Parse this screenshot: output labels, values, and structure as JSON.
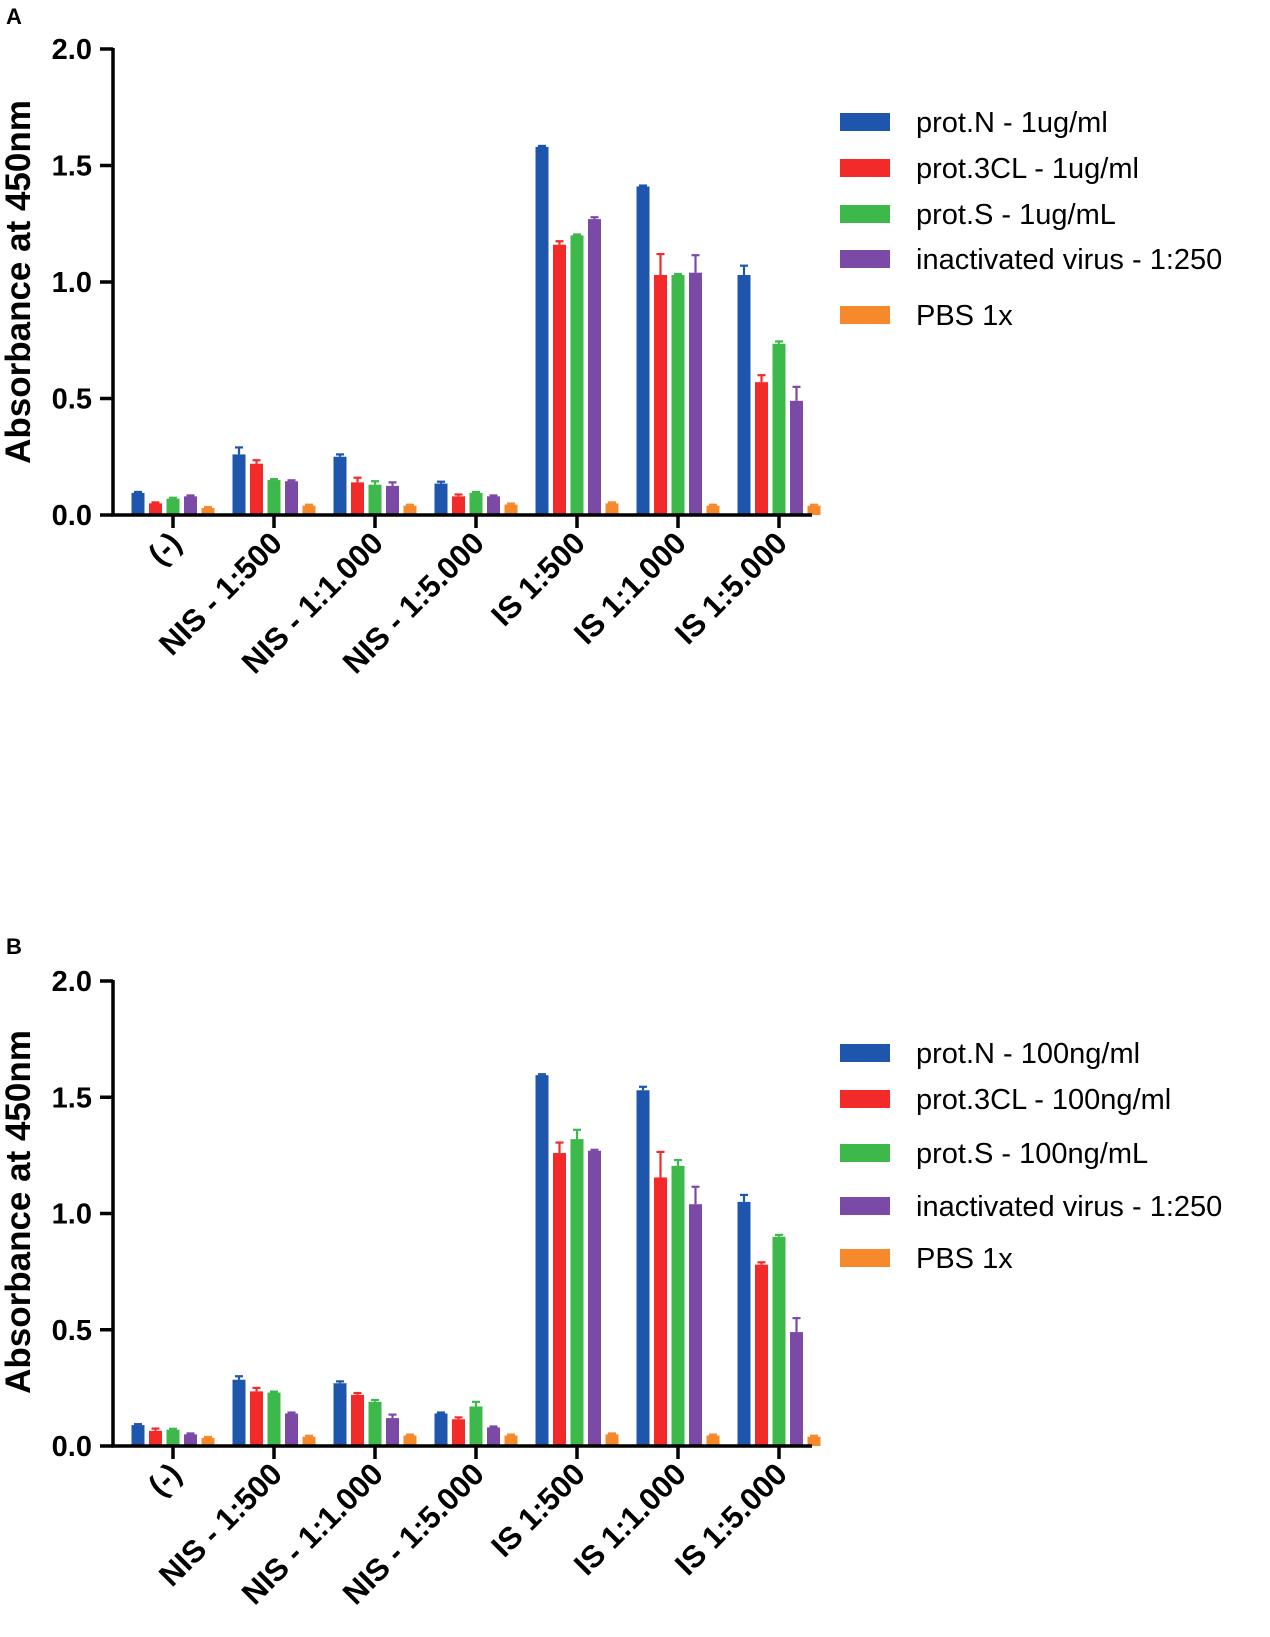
{
  "chart_data": [
    {
      "type": "bar",
      "panel": "A",
      "ylabel": "Absorbance at 450nm",
      "ylim": [
        0,
        2.0
      ],
      "yticks": [
        "0.0",
        "0.5",
        "1.0",
        "1.5",
        "2.0"
      ],
      "categories": [
        "(-)",
        "NIS - 1:500",
        "NIS - 1:1.000",
        "NIS - 1:5.000",
        "IS 1:500",
        "IS 1:1.000",
        "IS 1:5.000"
      ],
      "series": [
        {
          "name": "prot.N - 1ug/ml",
          "color": "#1f56ad",
          "values": [
            0.095,
            0.26,
            0.25,
            0.135,
            1.58,
            1.41,
            1.03
          ],
          "errors": [
            0.004,
            0.03,
            0.01,
            0.008,
            0.004,
            0.004,
            0.04
          ]
        },
        {
          "name": "prot.3CL - 1ug/ml",
          "color": "#f22a2a",
          "values": [
            0.05,
            0.22,
            0.14,
            0.08,
            1.16,
            1.03,
            0.57
          ],
          "errors": [
            0.004,
            0.015,
            0.02,
            0.008,
            0.015,
            0.09,
            0.03
          ]
        },
        {
          "name": "prot.S - 1ug/mL",
          "color": "#3cb94a",
          "values": [
            0.07,
            0.15,
            0.13,
            0.095,
            1.2,
            1.03,
            0.735
          ],
          "errors": [
            0.004,
            0.004,
            0.015,
            0.004,
            0.004,
            0.004,
            0.01
          ]
        },
        {
          "name": "inactivated virus - 1:250",
          "color": "#7b4aa6",
          "values": [
            0.08,
            0.145,
            0.125,
            0.08,
            1.27,
            1.04,
            0.49
          ],
          "errors": [
            0.004,
            0.004,
            0.015,
            0.004,
            0.008,
            0.075,
            0.06
          ]
        },
        {
          "name": "PBS 1x",
          "color": "#f5892b",
          "values": [
            0.03,
            0.04,
            0.04,
            0.045,
            0.05,
            0.04,
            0.04
          ],
          "errors": [
            0.004,
            0.004,
            0.004,
            0.004,
            0.004,
            0.004,
            0.004
          ]
        }
      ]
    },
    {
      "type": "bar",
      "panel": "B",
      "ylabel": "Absorbance at 450nm",
      "ylim": [
        0,
        2.0
      ],
      "yticks": [
        "0.0",
        "0.5",
        "1.0",
        "1.5",
        "2.0"
      ],
      "categories": [
        "(-)",
        "NIS - 1:500",
        "NIS - 1:1.000",
        "NIS - 1:5.000",
        "IS 1:500",
        "IS 1:1.000",
        "IS 1:5.000"
      ],
      "series": [
        {
          "name": "prot.N - 100ng/ml",
          "color": "#1f56ad",
          "values": [
            0.09,
            0.285,
            0.27,
            0.14,
            1.595,
            1.53,
            1.05
          ],
          "errors": [
            0.004,
            0.015,
            0.008,
            0.004,
            0.004,
            0.015,
            0.03
          ]
        },
        {
          "name": "prot.3CL - 100ng/ml",
          "color": "#f22a2a",
          "values": [
            0.065,
            0.235,
            0.22,
            0.115,
            1.26,
            1.155,
            0.78
          ],
          "errors": [
            0.01,
            0.015,
            0.008,
            0.008,
            0.045,
            0.11,
            0.01
          ]
        },
        {
          "name": "prot.S - 100ng/mL",
          "color": "#3cb94a",
          "values": [
            0.07,
            0.23,
            0.19,
            0.17,
            1.32,
            1.205,
            0.9
          ],
          "errors": [
            0.004,
            0.004,
            0.008,
            0.02,
            0.04,
            0.025,
            0.008
          ]
        },
        {
          "name": "inactivated virus - 1:250",
          "color": "#7b4aa6",
          "values": [
            0.05,
            0.14,
            0.12,
            0.08,
            1.27,
            1.04,
            0.49
          ],
          "errors": [
            0.004,
            0.004,
            0.015,
            0.004,
            0.004,
            0.075,
            0.06
          ]
        },
        {
          "name": "PBS 1x",
          "color": "#f5892b",
          "values": [
            0.035,
            0.04,
            0.045,
            0.045,
            0.05,
            0.045,
            0.04
          ],
          "errors": [
            0.004,
            0.004,
            0.004,
            0.004,
            0.004,
            0.004,
            0.004
          ]
        }
      ]
    }
  ]
}
